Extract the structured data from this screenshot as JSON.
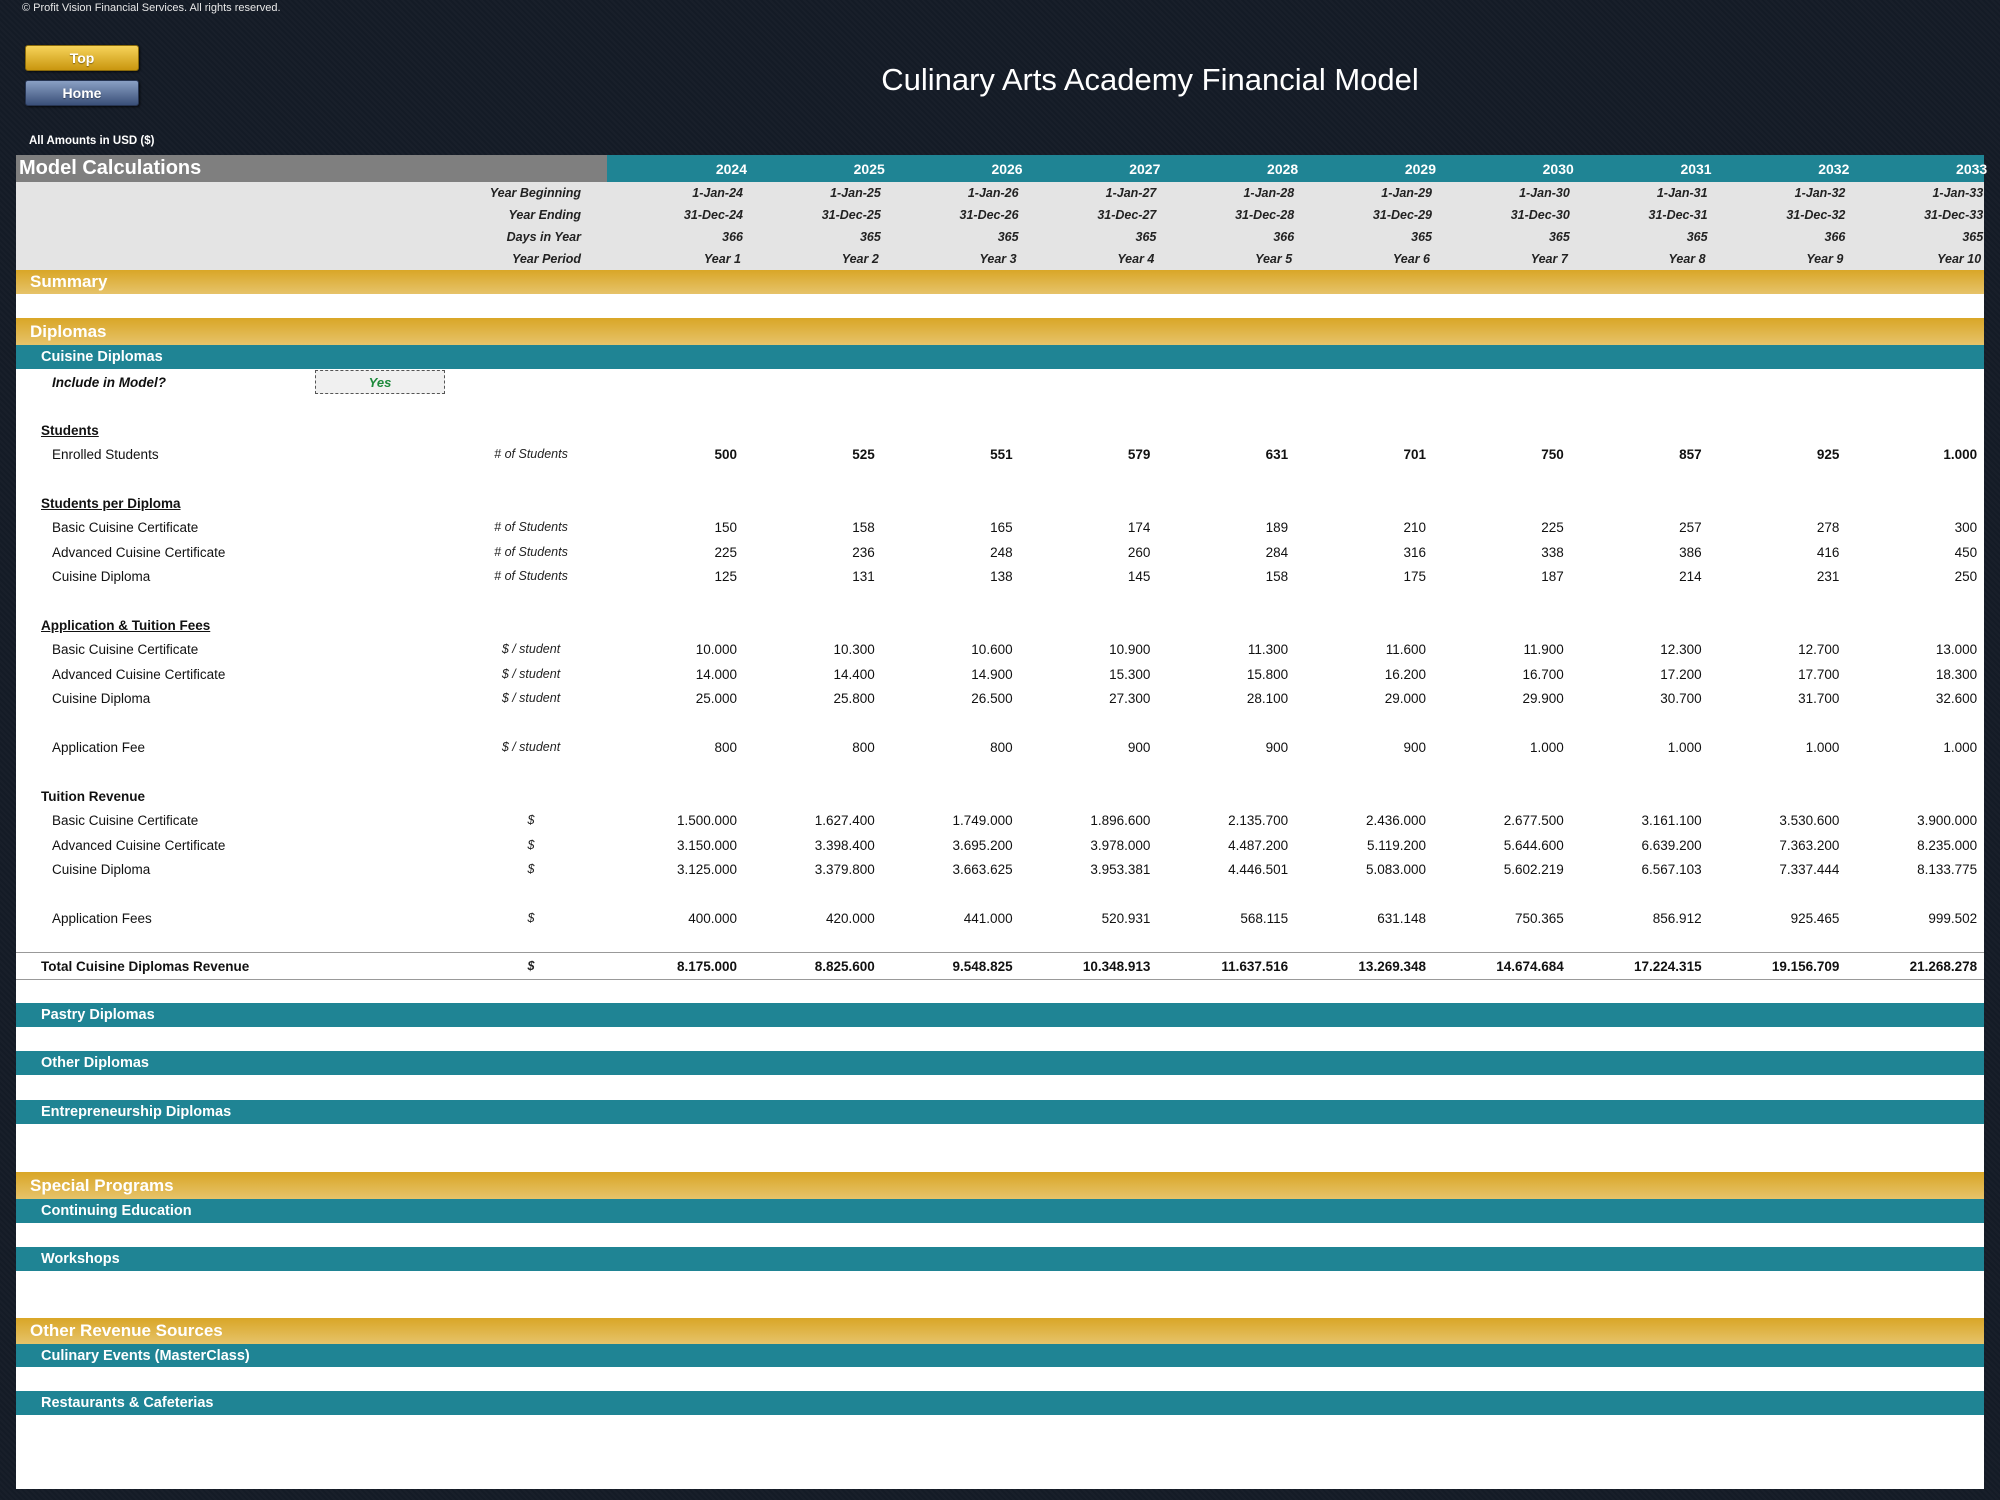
{
  "copyright": "© Profit Vision Financial Services. All rights reserved.",
  "nav": {
    "top": "Top",
    "home": "Home"
  },
  "title": "Culinary Arts Academy Financial Model",
  "units": "All Amounts in  USD ($)",
  "header": {
    "section": "Model Calculations",
    "years": [
      "2024",
      "2025",
      "2026",
      "2027",
      "2028",
      "2029",
      "2030",
      "2031",
      "2032",
      "2033"
    ]
  },
  "periods": {
    "year_beginning": {
      "label": "Year Beginning",
      "values": [
        "1-Jan-24",
        "1-Jan-25",
        "1-Jan-26",
        "1-Jan-27",
        "1-Jan-28",
        "1-Jan-29",
        "1-Jan-30",
        "1-Jan-31",
        "1-Jan-32",
        "1-Jan-33"
      ]
    },
    "year_ending": {
      "label": "Year Ending",
      "values": [
        "31-Dec-24",
        "31-Dec-25",
        "31-Dec-26",
        "31-Dec-27",
        "31-Dec-28",
        "31-Dec-29",
        "31-Dec-30",
        "31-Dec-31",
        "31-Dec-32",
        "31-Dec-33"
      ]
    },
    "days_in_year": {
      "label": "Days in Year",
      "values": [
        "366",
        "365",
        "365",
        "365",
        "366",
        "365",
        "365",
        "365",
        "366",
        "365"
      ]
    },
    "year_period": {
      "label": "Year Period",
      "values": [
        "Year 1",
        "Year 2",
        "Year 3",
        "Year 4",
        "Year 5",
        "Year 6",
        "Year 7",
        "Year 8",
        "Year 9",
        "Year 10"
      ]
    }
  },
  "sections": {
    "summary": "Summary",
    "diplomas": "Diplomas",
    "special_programs": "Special Programs",
    "other_revenue": "Other Revenue Sources"
  },
  "subsections": {
    "cuisine": "Cuisine Diplomas",
    "pastry": "Pastry Diplomas",
    "other_diplomas": "Other Diplomas",
    "entrepreneurship": "Entrepreneurship Diplomas",
    "continuing_education": "Continuing Education",
    "workshops": "Workshops",
    "culinary_events": "Culinary Events (MasterClass)",
    "restaurants": "Restaurants & Cafeterias"
  },
  "include": {
    "label": "Include in Model?",
    "value": "Yes"
  },
  "groups": {
    "students": "Students",
    "students_per_diploma": "Students per Diploma",
    "fees": "Application & Tuition Fees",
    "tuition_revenue": "Tuition Revenue"
  },
  "rows": {
    "enrolled": {
      "label": "Enrolled Students",
      "unit": "# of Students",
      "values": [
        "500",
        "525",
        "551",
        "579",
        "631",
        "701",
        "750",
        "857",
        "925",
        "1.000"
      ]
    },
    "spd_basic": {
      "label": "Basic Cuisine Certificate",
      "unit": "# of Students",
      "values": [
        "150",
        "158",
        "165",
        "174",
        "189",
        "210",
        "225",
        "257",
        "278",
        "300"
      ]
    },
    "spd_advanced": {
      "label": "Advanced Cuisine Certificate",
      "unit": "# of Students",
      "values": [
        "225",
        "236",
        "248",
        "260",
        "284",
        "316",
        "338",
        "386",
        "416",
        "450"
      ]
    },
    "spd_diploma": {
      "label": "Cuisine Diploma",
      "unit": "# of Students",
      "values": [
        "125",
        "131",
        "138",
        "145",
        "158",
        "175",
        "187",
        "214",
        "231",
        "250"
      ]
    },
    "fee_basic": {
      "label": "Basic Cuisine Certificate",
      "unit": "$ / student",
      "values": [
        "10.000",
        "10.300",
        "10.600",
        "10.900",
        "11.300",
        "11.600",
        "11.900",
        "12.300",
        "12.700",
        "13.000"
      ]
    },
    "fee_advanced": {
      "label": "Advanced Cuisine Certificate",
      "unit": "$ / student",
      "values": [
        "14.000",
        "14.400",
        "14.900",
        "15.300",
        "15.800",
        "16.200",
        "16.700",
        "17.200",
        "17.700",
        "18.300"
      ]
    },
    "fee_diploma": {
      "label": "Cuisine Diploma",
      "unit": "$ / student",
      "values": [
        "25.000",
        "25.800",
        "26.500",
        "27.300",
        "28.100",
        "29.000",
        "29.900",
        "30.700",
        "31.700",
        "32.600"
      ]
    },
    "app_fee": {
      "label": "Application Fee",
      "unit": "$ / student",
      "values": [
        "800",
        "800",
        "800",
        "900",
        "900",
        "900",
        "1.000",
        "1.000",
        "1.000",
        "1.000"
      ]
    },
    "rev_basic": {
      "label": "Basic Cuisine Certificate",
      "unit": "$",
      "values": [
        "1.500.000",
        "1.627.400",
        "1.749.000",
        "1.896.600",
        "2.135.700",
        "2.436.000",
        "2.677.500",
        "3.161.100",
        "3.530.600",
        "3.900.000"
      ]
    },
    "rev_advanced": {
      "label": "Advanced Cuisine Certificate",
      "unit": "$",
      "values": [
        "3.150.000",
        "3.398.400",
        "3.695.200",
        "3.978.000",
        "4.487.200",
        "5.119.200",
        "5.644.600",
        "6.639.200",
        "7.363.200",
        "8.235.000"
      ]
    },
    "rev_diploma": {
      "label": "Cuisine Diploma",
      "unit": "$",
      "values": [
        "3.125.000",
        "3.379.800",
        "3.663.625",
        "3.953.381",
        "4.446.501",
        "5.083.000",
        "5.602.219",
        "6.567.103",
        "7.337.444",
        "8.133.775"
      ]
    },
    "rev_app": {
      "label": "Application Fees",
      "unit": "$",
      "values": [
        "400.000",
        "420.000",
        "441.000",
        "520.931",
        "568.115",
        "631.148",
        "750.365",
        "856.912",
        "925.465",
        "999.502"
      ]
    },
    "total": {
      "label": "Total Cuisine Diplomas Revenue",
      "unit": "$",
      "values": [
        "8.175.000",
        "8.825.600",
        "9.548.825",
        "10.348.913",
        "11.637.516",
        "13.269.348",
        "14.674.684",
        "17.224.315",
        "19.156.709",
        "21.268.278"
      ]
    }
  }
}
